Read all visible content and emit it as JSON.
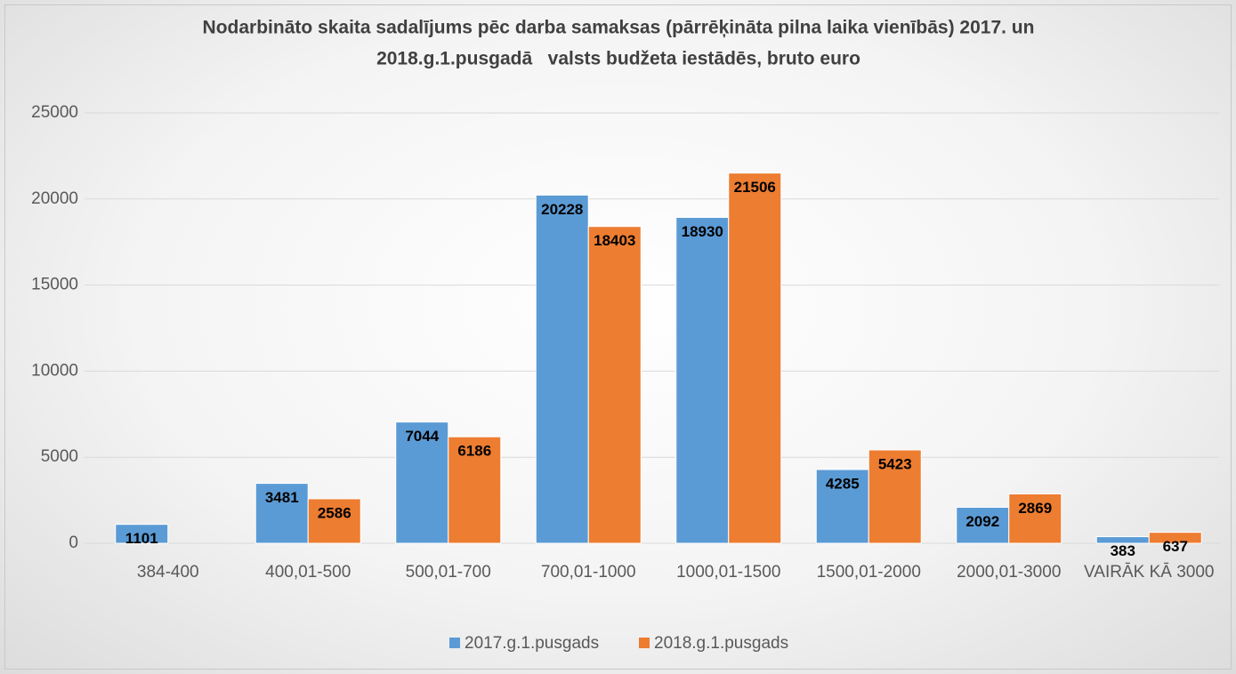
{
  "chart_data": {
    "type": "bar",
    "title": [
      "Nodarbināto skaita sadalījums pēc darba samaksas (pārrēķināta pilna laika vienībās) 2017. un",
      "2018.g.1.pusgadā   valsts budžeta iestādēs, bruto euro"
    ],
    "categories": [
      "384-400",
      "400,01-500",
      "500,01-700",
      "700,01-1000",
      "1000,01-1500",
      "1500,01-2000",
      "2000,01-3000",
      "VAIRĀK KĀ 3000"
    ],
    "series": [
      {
        "name": "2017.g.1.pusgads",
        "color": "#5b9bd5",
        "values": [
          1101,
          3481,
          7044,
          20228,
          18930,
          4285,
          2092,
          383
        ]
      },
      {
        "name": "2018.g.1.pusgads",
        "color": "#ed7d31",
        "values": [
          null,
          2586,
          6186,
          18403,
          21506,
          5423,
          2869,
          637
        ]
      }
    ],
    "ylim": [
      0,
      25000
    ],
    "yticks": [
      0,
      5000,
      10000,
      15000,
      20000,
      25000
    ],
    "grid": true,
    "legend": "bottom"
  }
}
